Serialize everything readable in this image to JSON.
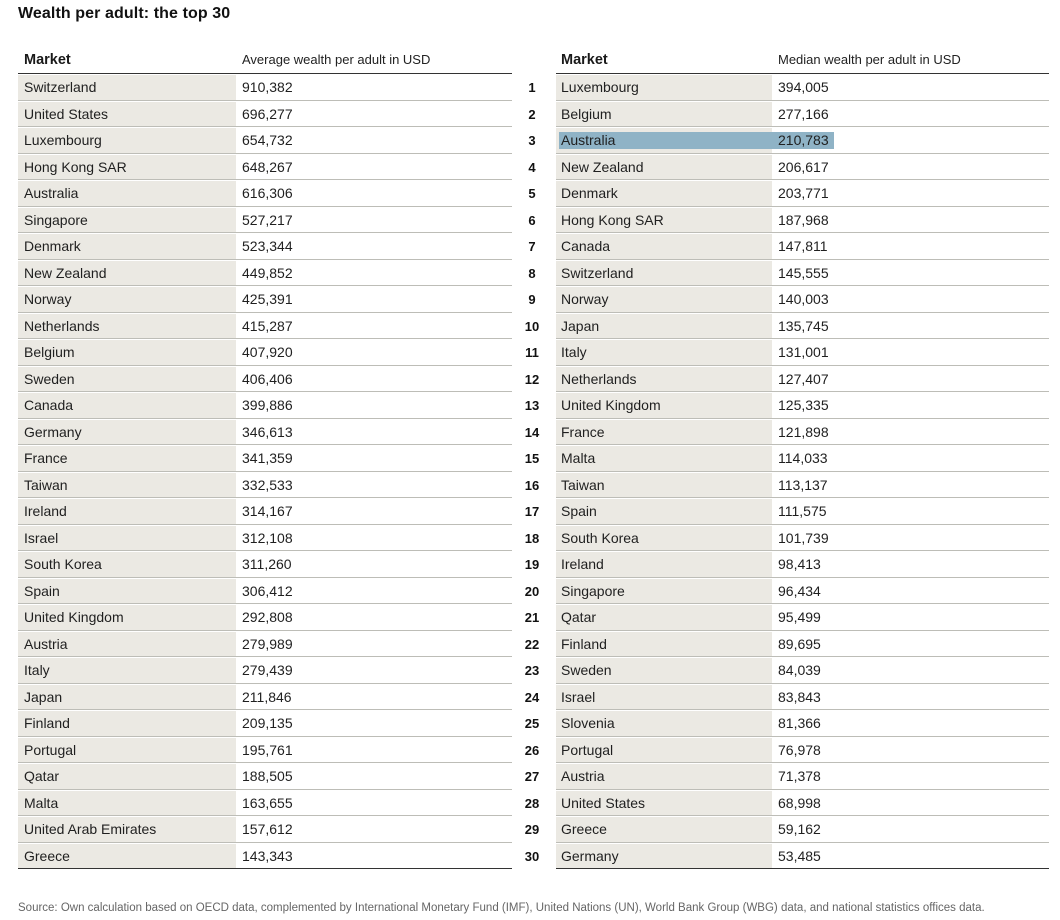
{
  "title": "Wealth per adult: the top 30",
  "left_table": {
    "market_header": "Market",
    "value_header": "Average wealth per adult in USD"
  },
  "right_table": {
    "market_header": "Market",
    "value_header": "Median wealth per adult in USD"
  },
  "highlight_color": "#8fb3c6",
  "highlighted_rank": 3,
  "rows": [
    {
      "rank": "1",
      "avg_market": "Switzerland",
      "avg_value": "910,382",
      "med_market": "Luxembourg",
      "med_value": "394,005"
    },
    {
      "rank": "2",
      "avg_market": "United States",
      "avg_value": "696,277",
      "med_market": "Belgium",
      "med_value": "277,166"
    },
    {
      "rank": "3",
      "avg_market": "Luxembourg",
      "avg_value": "654,732",
      "med_market": "Australia",
      "med_value": "210,783"
    },
    {
      "rank": "4",
      "avg_market": "Hong Kong SAR",
      "avg_value": "648,267",
      "med_market": "New Zealand",
      "med_value": "206,617"
    },
    {
      "rank": "5",
      "avg_market": "Australia",
      "avg_value": "616,306",
      "med_market": "Denmark",
      "med_value": "203,771"
    },
    {
      "rank": "6",
      "avg_market": "Singapore",
      "avg_value": "527,217",
      "med_market": "Hong Kong SAR",
      "med_value": "187,968"
    },
    {
      "rank": "7",
      "avg_market": "Denmark",
      "avg_value": "523,344",
      "med_market": "Canada",
      "med_value": "147,811"
    },
    {
      "rank": "8",
      "avg_market": "New Zealand",
      "avg_value": "449,852",
      "med_market": "Switzerland",
      "med_value": "145,555"
    },
    {
      "rank": "9",
      "avg_market": "Norway",
      "avg_value": "425,391",
      "med_market": "Norway",
      "med_value": "140,003"
    },
    {
      "rank": "10",
      "avg_market": "Netherlands",
      "avg_value": "415,287",
      "med_market": "Japan",
      "med_value": "135,745"
    },
    {
      "rank": "11",
      "avg_market": "Belgium",
      "avg_value": "407,920",
      "med_market": "Italy",
      "med_value": "131,001"
    },
    {
      "rank": "12",
      "avg_market": "Sweden",
      "avg_value": "406,406",
      "med_market": "Netherlands",
      "med_value": "127,407"
    },
    {
      "rank": "13",
      "avg_market": "Canada",
      "avg_value": "399,886",
      "med_market": "United Kingdom",
      "med_value": "125,335"
    },
    {
      "rank": "14",
      "avg_market": "Germany",
      "avg_value": "346,613",
      "med_market": "France",
      "med_value": "121,898"
    },
    {
      "rank": "15",
      "avg_market": "France",
      "avg_value": "341,359",
      "med_market": "Malta",
      "med_value": "114,033"
    },
    {
      "rank": "16",
      "avg_market": "Taiwan",
      "avg_value": "332,533",
      "med_market": "Taiwan",
      "med_value": "113,137"
    },
    {
      "rank": "17",
      "avg_market": "Ireland",
      "avg_value": "314,167",
      "med_market": "Spain",
      "med_value": "111,575"
    },
    {
      "rank": "18",
      "avg_market": "Israel",
      "avg_value": "312,108",
      "med_market": "South Korea",
      "med_value": "101,739"
    },
    {
      "rank": "19",
      "avg_market": "South Korea",
      "avg_value": "311,260",
      "med_market": "Ireland",
      "med_value": "98,413"
    },
    {
      "rank": "20",
      "avg_market": "Spain",
      "avg_value": "306,412",
      "med_market": "Singapore",
      "med_value": "96,434"
    },
    {
      "rank": "21",
      "avg_market": "United Kingdom",
      "avg_value": "292,808",
      "med_market": "Qatar",
      "med_value": "95,499"
    },
    {
      "rank": "22",
      "avg_market": "Austria",
      "avg_value": "279,989",
      "med_market": "Finland",
      "med_value": "89,695"
    },
    {
      "rank": "23",
      "avg_market": "Italy",
      "avg_value": "279,439",
      "med_market": "Sweden",
      "med_value": "84,039"
    },
    {
      "rank": "24",
      "avg_market": "Japan",
      "avg_value": "211,846",
      "med_market": "Israel",
      "med_value": "83,843"
    },
    {
      "rank": "25",
      "avg_market": "Finland",
      "avg_value": "209,135",
      "med_market": "Slovenia",
      "med_value": "81,366"
    },
    {
      "rank": "26",
      "avg_market": "Portugal",
      "avg_value": "195,761",
      "med_market": "Portugal",
      "med_value": "76,978"
    },
    {
      "rank": "27",
      "avg_market": "Qatar",
      "avg_value": "188,505",
      "med_market": "Austria",
      "med_value": "71,378"
    },
    {
      "rank": "28",
      "avg_market": "Malta",
      "avg_value": "163,655",
      "med_market": "United States",
      "med_value": "68,998"
    },
    {
      "rank": "29",
      "avg_market": "United Arab Emirates",
      "avg_value": "157,612",
      "med_market": "Greece",
      "med_value": "59,162"
    },
    {
      "rank": "30",
      "avg_market": "Greece",
      "avg_value": "143,343",
      "med_market": "Germany",
      "med_value": "53,485"
    }
  ],
  "source": "Source: Own calculation based on OECD data, complemented by International Monetary Fund (IMF), United Nations (UN), World Bank Group (WBG) data, and national statistics offices data."
}
